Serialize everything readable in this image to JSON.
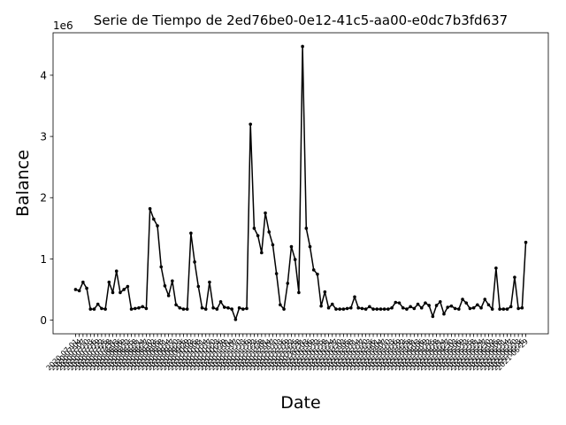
{
  "chart_data": {
    "type": "line",
    "title": "Serie de Tiempo de 2ed76be0-0e12-41c5-aa00-e0dc7b3fd637",
    "x_label": "Date",
    "y_label": "Balance",
    "y_offset_label": "1e6",
    "categories": [
      "2020-07-01",
      "2020-07-04",
      "2020-07-07",
      "2020-07-10",
      "2020-07-13",
      "2020-07-16",
      "2020-07-19",
      "2020-07-22",
      "2020-07-25",
      "2020-07-28",
      "2020-07-31",
      "2020-08-03",
      "2020-08-06",
      "2020-08-09",
      "2020-08-12",
      "2020-08-15",
      "2020-08-18",
      "2020-08-21",
      "2020-08-24",
      "2020-08-27",
      "2020-08-30",
      "2020-09-02",
      "2020-09-05",
      "2020-09-08",
      "2020-09-11",
      "2020-09-14",
      "2020-09-17",
      "2020-09-20",
      "2020-09-23",
      "2020-09-26",
      "2020-09-29",
      "2020-10-02",
      "2020-10-05",
      "2020-10-08",
      "2020-10-11",
      "2020-10-14",
      "2020-10-17",
      "2020-10-20",
      "2020-10-23",
      "2020-10-26",
      "2020-10-29",
      "2020-11-01",
      "2020-11-04",
      "2020-11-07",
      "2020-11-10",
      "2020-11-13",
      "2020-11-16",
      "2020-11-19",
      "2020-11-22",
      "2020-11-25",
      "2020-11-28",
      "2020-12-01",
      "2020-12-04",
      "2020-12-07",
      "2020-12-10",
      "2020-12-13",
      "2020-12-16",
      "2020-12-19",
      "2020-12-22",
      "2020-12-25",
      "2020-12-28",
      "2020-12-31",
      "2021-01-03",
      "2021-01-06",
      "2021-01-09",
      "2021-01-12",
      "2021-01-15",
      "2021-01-18",
      "2021-01-21",
      "2021-01-24",
      "2021-01-27",
      "2021-01-30",
      "2021-02-02",
      "2021-02-05",
      "2021-02-08",
      "2021-02-11",
      "2021-02-14",
      "2021-02-17",
      "2021-02-20",
      "2021-02-23",
      "2021-02-26",
      "2021-03-01",
      "2021-03-04",
      "2021-03-07",
      "2021-03-10",
      "2021-03-13",
      "2021-03-16",
      "2021-03-19",
      "2021-03-22",
      "2021-03-25",
      "2021-03-28",
      "2021-03-31",
      "2021-04-03",
      "2021-04-06",
      "2021-04-09",
      "2021-04-12",
      "2021-04-15",
      "2021-04-18",
      "2021-04-21",
      "2021-04-24",
      "2021-04-27",
      "2021-04-30",
      "2021-05-03",
      "2021-05-06",
      "2021-05-09",
      "2021-05-12",
      "2021-05-15",
      "2021-05-18",
      "2021-05-21",
      "2021-05-24",
      "2021-05-27",
      "2021-05-30",
      "2021-06-02",
      "2021-06-05",
      "2021-06-08",
      "2021-06-11",
      "2021-06-14",
      "2021-06-17",
      "2021-06-20",
      "2021-06-23",
      "2021-06-26",
      "2021-06-29"
    ],
    "series": [
      {
        "name": "Balance",
        "color": "#000000",
        "values": [
          500000,
          480000,
          620000,
          520000,
          180000,
          180000,
          260000,
          190000,
          180000,
          620000,
          450000,
          800000,
          450000,
          500000,
          550000,
          180000,
          190000,
          200000,
          220000,
          190000,
          1820000,
          1650000,
          1540000,
          870000,
          560000,
          400000,
          640000,
          250000,
          200000,
          180000,
          180000,
          1420000,
          950000,
          550000,
          200000,
          180000,
          620000,
          200000,
          180000,
          300000,
          210000,
          200000,
          180000,
          10000,
          200000,
          180000,
          190000,
          3200000,
          1500000,
          1380000,
          1100000,
          1750000,
          1440000,
          1230000,
          760000,
          250000,
          180000,
          600000,
          1200000,
          990000,
          450000,
          4470000,
          1500000,
          1200000,
          820000,
          750000,
          230000,
          460000,
          200000,
          260000,
          180000,
          180000,
          180000,
          190000,
          200000,
          380000,
          200000,
          190000,
          180000,
          220000,
          180000,
          180000,
          180000,
          180000,
          180000,
          200000,
          290000,
          280000,
          200000,
          180000,
          220000,
          190000,
          260000,
          200000,
          280000,
          240000,
          60000,
          240000,
          300000,
          100000,
          210000,
          230000,
          190000,
          180000,
          340000,
          280000,
          190000,
          200000,
          250000,
          200000,
          340000,
          250000,
          180000,
          850000,
          180000,
          180000,
          180000,
          220000,
          700000,
          190000,
          200000,
          1270000
        ]
      }
    ],
    "ylim": [
      -223500,
      4693500
    ],
    "yticks": [
      0,
      {
        "value": 1000000,
        "label": "1"
      },
      {
        "value": 2000000,
        "label": "2"
      },
      {
        "value": 3000000,
        "label": "3"
      },
      {
        "value": 4000000,
        "label": "4"
      }
    ]
  }
}
